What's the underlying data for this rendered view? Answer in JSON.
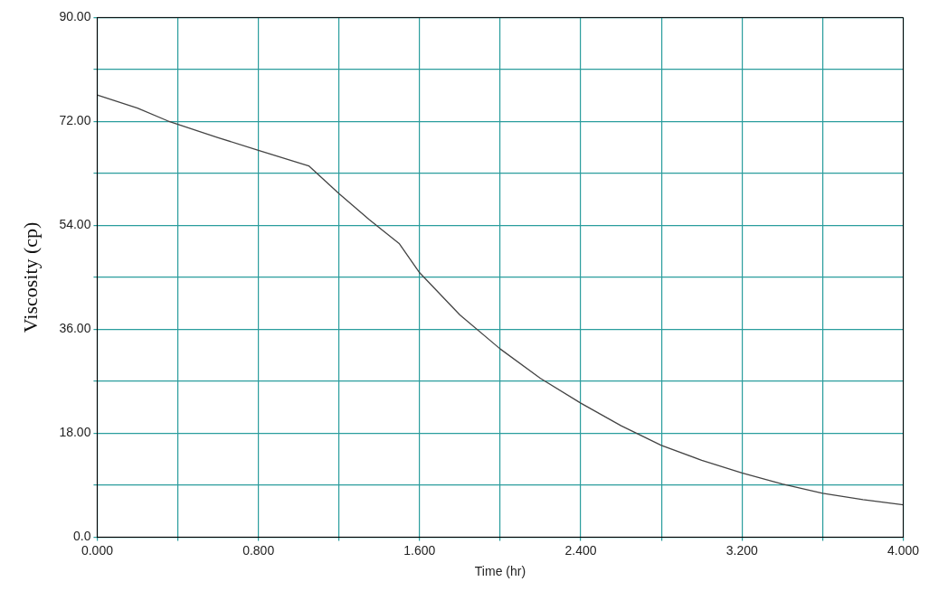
{
  "chart_data": {
    "type": "line",
    "xlabel": "Time (hr)",
    "ylabel": "Viscosity (cp)",
    "x": [
      0,
      0.2,
      0.35,
      0.6,
      0.8,
      1.05,
      1.2,
      1.35,
      1.5,
      1.6,
      1.8,
      2.0,
      2.2,
      2.4,
      2.6,
      2.8,
      3.0,
      3.2,
      3.4,
      3.6,
      3.8,
      4.0
    ],
    "series": [
      {
        "color": "#444444",
        "values": [
          76.6,
          74.3,
          72.1,
          69.2,
          67.0,
          64.3,
          59.5,
          55.0,
          50.8,
          45.8,
          38.5,
          32.6,
          27.5,
          23.2,
          19.3,
          15.9,
          13.3,
          11.1,
          9.2,
          7.6,
          6.5,
          5.6
        ]
      }
    ],
    "xlim": [
      0,
      4
    ],
    "xticks": [
      {
        "value": 0,
        "label": "0.000"
      },
      {
        "value": 0.4,
        "label": null
      },
      {
        "value": 0.8,
        "label": "0.800"
      },
      {
        "value": 1.2,
        "label": null
      },
      {
        "value": 1.6,
        "label": "1.600"
      },
      {
        "value": 2.0,
        "label": null
      },
      {
        "value": 2.4,
        "label": "2.400"
      },
      {
        "value": 2.8,
        "label": null
      },
      {
        "value": 3.2,
        "label": "3.200"
      },
      {
        "value": 3.6,
        "label": null
      },
      {
        "value": 4.0,
        "label": "4.000"
      }
    ],
    "ylim": [
      0,
      90
    ],
    "yticks": [
      {
        "value": 0,
        "label": "0.0"
      },
      {
        "value": 9,
        "label": null
      },
      {
        "value": 18,
        "label": "18.00"
      },
      {
        "value": 27,
        "label": null
      },
      {
        "value": 36,
        "label": "36.00"
      },
      {
        "value": 45,
        "label": null
      },
      {
        "value": 54,
        "label": "54.00"
      },
      {
        "value": 63,
        "label": null
      },
      {
        "value": 72,
        "label": "72.00"
      },
      {
        "value": 81,
        "label": null
      },
      {
        "value": 90,
        "label": "90.00"
      }
    ],
    "grid": true,
    "legend": false,
    "marker": "none",
    "line_style": "solid"
  }
}
